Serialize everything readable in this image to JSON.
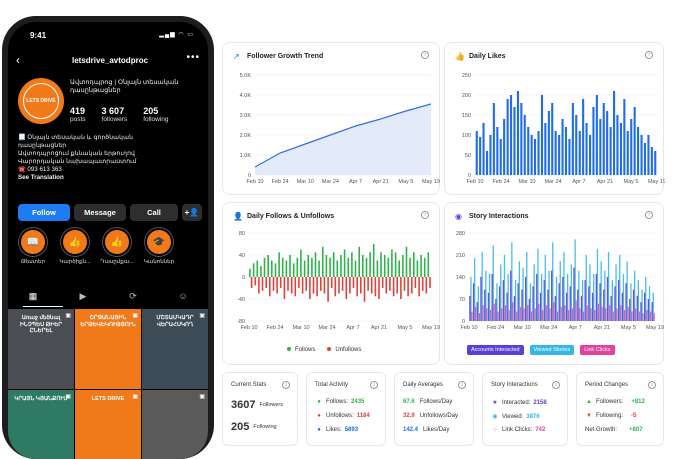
{
  "phone": {
    "time": "9:41",
    "username": "letsdrive_avtodproc",
    "avatar_text": "LETS DRIVE",
    "category": "Ավտոդպրոց | Օնլայն տեսական դասընթացներ",
    "stats": [
      {
        "num": "419",
        "label": "posts"
      },
      {
        "num": "3 607",
        "label": "followers"
      },
      {
        "num": "205",
        "label": "following"
      }
    ],
    "bio_lines": [
      "📃 Օնլայն տեսական և գործնական",
      "դասընթացներ",
      "Ավտոդպրոցում քննական երթուղով",
      "Վարորդական նախապատրաստում",
      "☎️ 093 613 363"
    ],
    "see_translation": "See Translation",
    "buttons": {
      "follow": "Follow",
      "message": "Message",
      "call": "Call",
      "add": "+👤"
    },
    "highlights": [
      {
        "label": "Թեստեր",
        "icon": "📖"
      },
      {
        "label": "Կարծիքն...",
        "icon": "👍"
      },
      {
        "label": "Դասըմքա...",
        "icon": "👍"
      },
      {
        "label": "Կանոններ",
        "icon": "🎓"
      }
    ],
    "tabs": [
      "▦",
      "▶",
      "⟳",
      "☺"
    ],
    "posts": [
      {
        "text": "Առաջ մեծնալ ԻՆՉՊԵՍ ԹԻԵՐ ԸՆԵՐԵԼ",
        "bg": "#4a4d52"
      },
      {
        "text": "ՇՐՋԱՆԱՅԻՆ ԵՐԹԵՎԵԿՈՒԹՅՈՒՆ",
        "bg": "#f07a1a"
      },
      {
        "text": "ՄՇՏԱՄԿԱԴՐ ՎԵՐԱՀՍԿՈՂ",
        "bg": "#3d4b57"
      },
      {
        "text": "ԿՐԱՅՆ ԿՅԱՆՔՈՒՄ",
        "bg": "#2f7a63"
      },
      {
        "text": "LETS DRIVE",
        "bg": "#f07a1a"
      },
      {
        "text": "",
        "bg": "#5a5a5a"
      }
    ]
  },
  "dashboard": {
    "follower_trend": {
      "title": "Follower Growth Trend",
      "yticks": [
        "5.0K",
        "4.0K",
        "3.0K",
        "2.0K",
        "1.0K",
        "0"
      ],
      "xticks": [
        "Feb 10",
        "Feb 24",
        "Mar 10",
        "Mar 24",
        "Apr 7",
        "Apr 21",
        "May 5",
        "May 19"
      ]
    },
    "daily_likes": {
      "title": "Daily Likes",
      "yticks": [
        "250",
        "200",
        "150",
        "100",
        "50",
        "0"
      ],
      "xticks": [
        "Feb 10",
        "Feb 24",
        "Mar 10",
        "Mar 24",
        "Apr 7",
        "Apr 21",
        "May 5",
        "May 19"
      ]
    },
    "follows_unfollows": {
      "title": "Daily Follows & Unfollows",
      "yticks": [
        "80",
        "40",
        "0",
        "-40",
        "-80"
      ],
      "xticks": [
        "Feb 10",
        "Feb 24",
        "Mar 10",
        "Mar 24",
        "Apr 7",
        "Apr 21",
        "May 5",
        "May 19"
      ],
      "legend": [
        "Follows",
        "Unfollows"
      ],
      "colors": {
        "follows": "#2fb24a",
        "unfollows": "#e0413a"
      }
    },
    "story_interactions": {
      "title": "Story Interactions",
      "yticks": [
        "280",
        "210",
        "140",
        "70",
        "0"
      ],
      "xticks": [
        "Feb 10",
        "Feb 24",
        "Mar 10",
        "Mar 24",
        "Apr 7",
        "Apr 21",
        "May 5",
        "May 19"
      ],
      "legend": [
        "Accounts Interacted",
        "Viewed Stories",
        "Link Clicks"
      ],
      "colors": [
        "#5b3fd6",
        "#35b6e6",
        "#e0439c"
      ]
    },
    "current_stats": {
      "title": "Current Stats",
      "followers_num": "3607",
      "followers_label": "Followers",
      "following_num": "205",
      "following_label": "Following"
    },
    "total_activity": {
      "title": "Total Activity",
      "rows": [
        {
          "label": "Follows:",
          "value": "2435",
          "color": "#2fb24a"
        },
        {
          "label": "Unfollows:",
          "value": "1184",
          "color": "#e0413a"
        },
        {
          "label": "Likes:",
          "value": "5893",
          "color": "#1e6ee6"
        }
      ]
    },
    "daily_averages": {
      "title": "Daily Averages",
      "rows": [
        {
          "value": "67.6",
          "label": "Follows/Day",
          "color": "#2fb24a"
        },
        {
          "value": "32.9",
          "label": "Unfollows/Day",
          "color": "#e0413a"
        },
        {
          "value": "142.4",
          "label": "Likes/Day",
          "color": "#1e6ee6"
        }
      ]
    },
    "story_stats": {
      "title": "Story Interactions",
      "rows": [
        {
          "label": "Interacted:",
          "value": "2158",
          "color": "#5b3fd6"
        },
        {
          "label": "Viewed:",
          "value": "3876",
          "color": "#35b6e6"
        },
        {
          "label": "Link Clicks:",
          "value": "742",
          "color": "#e0439c"
        }
      ]
    },
    "period_changes": {
      "title": "Period Changes",
      "rows": [
        {
          "label": "Followers:",
          "value": "+812",
          "color": "#2fb24a"
        },
        {
          "label": "Following:",
          "value": "-5",
          "color": "#e0413a"
        },
        {
          "label": "Net Growth:",
          "value": "+807",
          "color": "#2fb24a"
        }
      ]
    }
  },
  "chart_data": [
    {
      "type": "area",
      "title": "Follower Growth Trend",
      "x": [
        "Feb 10",
        "Feb 24",
        "Mar 10",
        "Mar 24",
        "Apr 7",
        "Apr 21",
        "May 5",
        "May 19"
      ],
      "values": [
        400,
        1100,
        1550,
        2000,
        2450,
        2800,
        3200,
        3550
      ],
      "ylim": [
        0,
        5000
      ]
    },
    {
      "type": "bar",
      "title": "Daily Likes",
      "values": [
        110,
        95,
        130,
        60,
        100,
        180,
        120,
        90,
        140,
        190,
        200,
        170,
        210,
        180,
        150,
        120,
        100,
        90,
        110,
        200,
        130,
        160,
        180,
        110,
        100,
        140,
        120,
        90,
        180,
        150,
        110,
        190,
        130,
        100,
        170,
        200,
        140,
        180,
        160,
        120,
        210,
        150,
        130,
        190,
        110,
        140,
        170,
        120,
        100,
        80,
        100,
        70,
        60
      ],
      "ylim": [
        0,
        250
      ]
    },
    {
      "type": "bar",
      "title": "Daily Follows & Unfollows",
      "series": [
        {
          "name": "Follows",
          "values": [
            15,
            25,
            30,
            20,
            35,
            40,
            30,
            25,
            45,
            35,
            30,
            40,
            25,
            35,
            50,
            30,
            40,
            35,
            45,
            30,
            55,
            40,
            35,
            45,
            30,
            40,
            50,
            35,
            45,
            30,
            55,
            40,
            35,
            45,
            60,
            30,
            45,
            40,
            35,
            50,
            45,
            30,
            40,
            55,
            35,
            45,
            30,
            40,
            35,
            45
          ]
        },
        {
          "name": "Unfollows",
          "values": [
            -20,
            -15,
            -30,
            -25,
            -20,
            -35,
            -25,
            -30,
            -20,
            -40,
            -25,
            -30,
            -35,
            -20,
            -30,
            -25,
            -40,
            -30,
            -35,
            -25,
            -30,
            -45,
            -20,
            -35,
            -30,
            -25,
            -40,
            -30,
            -20,
            -35,
            -30,
            -45,
            -25,
            -30,
            -35,
            -40,
            -20,
            -30,
            -25,
            -35,
            -30,
            -40,
            -25,
            -35,
            -30,
            -20,
            -35,
            -25,
            -30,
            -20
          ]
        }
      ],
      "ylim": [
        -80,
        80
      ]
    },
    {
      "type": "bar",
      "title": "Story Interactions",
      "series": [
        {
          "name": "Accounts Interacted",
          "values": [
            80,
            120,
            60,
            140,
            100,
            90,
            150,
            70,
            110,
            130,
            90,
            160,
            80,
            120,
            100,
            140,
            70,
            110,
            150,
            90,
            130,
            100,
            160,
            80,
            120,
            140,
            90,
            110,
            170,
            100,
            80,
            130,
            110,
            90,
            150,
            120,
            100,
            140,
            80,
            110,
            130,
            90,
            120,
            70,
            100,
            80,
            60,
            90,
            70,
            60
          ]
        },
        {
          "name": "Viewed Stories",
          "values": [
            140,
            200,
            110,
            220,
            160,
            150,
            240,
            120,
            180,
            210,
            150,
            250,
            130,
            190,
            170,
            220,
            120,
            180,
            230,
            150,
            210,
            160,
            250,
            140,
            190,
            220,
            150,
            180,
            260,
            160,
            130,
            210,
            180,
            150,
            230,
            190,
            160,
            220,
            130,
            180,
            210,
            150,
            190,
            120,
            160,
            130,
            100,
            140,
            110,
            90
          ]
        },
        {
          "name": "Link Clicks",
          "values": [
            30,
            45,
            25,
            50,
            40,
            35,
            55,
            30,
            40,
            50,
            35,
            60,
            30,
            45,
            40,
            50,
            30,
            40,
            55,
            35,
            50,
            40,
            60,
            30,
            45,
            50,
            35,
            40,
            65,
            40,
            30,
            50,
            40,
            35,
            55,
            45,
            40,
            50,
            30,
            40,
            50,
            35,
            45,
            30,
            40,
            30,
            25,
            35,
            30,
            25
          ]
        }
      ],
      "ylim": [
        0,
        280
      ]
    }
  ]
}
